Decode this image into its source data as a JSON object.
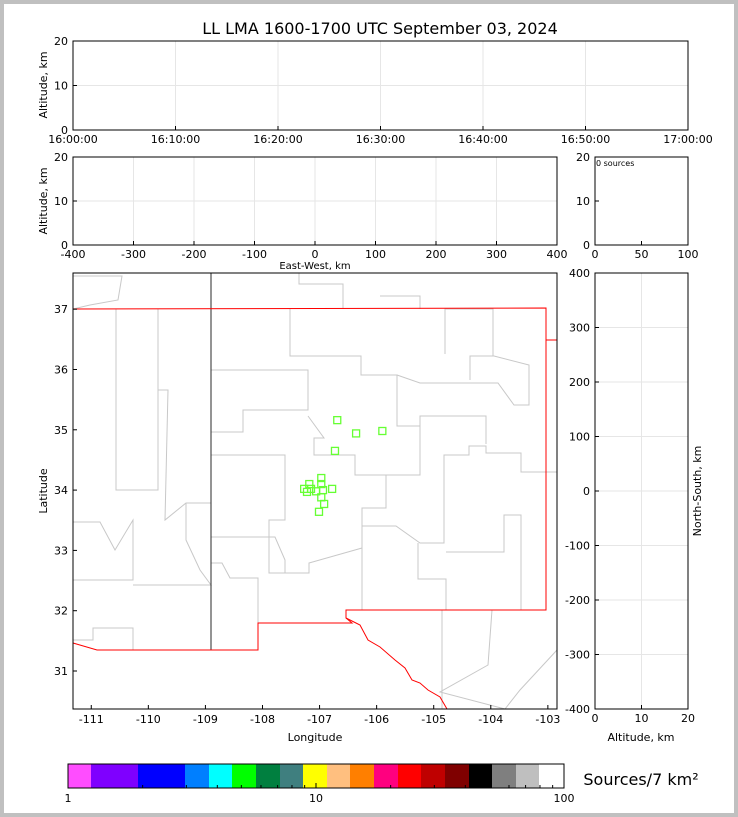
{
  "title": "LL LMA 1600-1700 UTC September 03, 2024",
  "chart_data": [
    {
      "type": "scatter",
      "panel": "altitude-time",
      "ylabel": "Altitude, km",
      "ylim": [
        0,
        20
      ],
      "yticks": [
        "0",
        "10",
        "20"
      ],
      "xlim": [
        "16:00:00",
        "17:00:00"
      ],
      "xticks": [
        "16:00:00",
        "16:10:00",
        "16:20:00",
        "16:30:00",
        "16:40:00",
        "16:50:00",
        "17:00:00"
      ],
      "grid": true,
      "points": []
    },
    {
      "type": "scatter",
      "panel": "altitude-eastwest",
      "ylabel": "Altitude, km",
      "xlabel": "East-West, km",
      "ylim": [
        0,
        20
      ],
      "xlim": [
        -400,
        400
      ],
      "xticks": [
        "-400",
        "-300",
        "-200",
        "-100",
        "0",
        "100",
        "200",
        "300",
        "400"
      ],
      "yticks": [
        "0",
        "10",
        "20"
      ],
      "grid": true,
      "points": []
    },
    {
      "type": "histogram",
      "panel": "sources-altitude",
      "annotation": "0 sources",
      "xlim": [
        0,
        100
      ],
      "ylim": [
        0,
        20
      ],
      "xticks": [
        "0",
        "50",
        "100"
      ],
      "yticks": [
        "0",
        "10",
        "20"
      ],
      "values": []
    },
    {
      "type": "scatter",
      "panel": "plan-view",
      "xlabel": "Longitude",
      "ylabel": "Latitude",
      "xlim": [
        -111.32,
        -102.84
      ],
      "ylim": [
        30.37,
        37.6
      ],
      "xticks": [
        "-111",
        "-110",
        "-109",
        "-108",
        "-107",
        "-106",
        "-105",
        "-104",
        "-103"
      ],
      "yticks": [
        "31",
        "32",
        "33",
        "34",
        "35",
        "36",
        "37"
      ],
      "marker_color": "#66ff33",
      "points": [
        [
          -106.69,
          35.16
        ],
        [
          -106.36,
          34.94
        ],
        [
          -105.9,
          34.98
        ],
        [
          -106.73,
          34.65
        ],
        [
          -106.97,
          34.2
        ],
        [
          -107.18,
          34.1
        ],
        [
          -107.27,
          34.02
        ],
        [
          -107.22,
          33.97
        ],
        [
          -107.15,
          34.02
        ],
        [
          -107.06,
          33.98
        ],
        [
          -106.97,
          34.1
        ],
        [
          -106.94,
          34.0
        ],
        [
          -106.78,
          34.02
        ],
        [
          -106.97,
          33.88
        ],
        [
          -106.92,
          33.77
        ],
        [
          -107.01,
          33.64
        ]
      ]
    },
    {
      "type": "scatter",
      "panel": "northsouth-altitude",
      "ylabel": "North-South, km",
      "xlabel": "Altitude, km",
      "xlim": [
        0,
        20
      ],
      "ylim": [
        -400,
        400
      ],
      "xticks": [
        "0",
        "10",
        "20"
      ],
      "yticks": [
        "-400",
        "-300",
        "-200",
        "-100",
        "0",
        "100",
        "200",
        "300",
        "400"
      ],
      "grid": true,
      "points": []
    }
  ],
  "colorbar": {
    "label": "Sources/7 km²",
    "scale": "log",
    "range": [
      1,
      100
    ],
    "ticks": [
      "1",
      "10",
      "100"
    ],
    "colors": [
      "#ff4dff",
      "#7f00ff",
      "#0000ff",
      "#007fff",
      "#00ffff",
      "#00ff00",
      "#007f3f",
      "#3f7f7f",
      "#ffff00",
      "#ffbf7f",
      "#ff7f00",
      "#ff007f",
      "#ff0000",
      "#bf0000",
      "#7f0000",
      "#000000",
      "#7f7f7f",
      "#bfbfbf",
      "#ffffff"
    ]
  }
}
